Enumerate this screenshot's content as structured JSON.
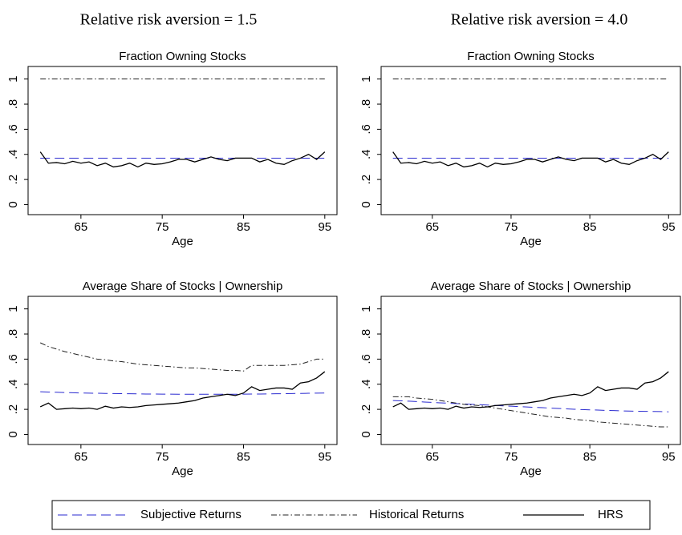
{
  "column_titles": [
    "Relative risk aversion = 1.5",
    "Relative risk aversion = 4.0"
  ],
  "chart_data": [
    {
      "type": "line",
      "title": "Fraction Owning Stocks",
      "xlabel": "Age",
      "x": [
        60,
        61,
        62,
        63,
        64,
        65,
        66,
        67,
        68,
        69,
        70,
        71,
        72,
        73,
        74,
        75,
        76,
        77,
        78,
        79,
        80,
        81,
        82,
        83,
        84,
        85,
        86,
        87,
        88,
        89,
        90,
        91,
        92,
        93,
        94,
        95
      ],
      "xlim": [
        58.5,
        96.5
      ],
      "xticks": [
        65,
        75,
        85,
        95
      ],
      "ylim": [
        -0.08,
        1.1
      ],
      "yticks": [
        0,
        {
          "value": 0.2,
          "label": ".2"
        },
        {
          "value": 0.4,
          "label": ".4"
        },
        {
          "value": 0.6,
          "label": ".6"
        },
        {
          "value": 0.8,
          "label": ".8"
        },
        1
      ],
      "grid": false,
      "series": [
        {
          "name": "Subjective Returns",
          "color": "#2a2ad0",
          "line_style": "dashed",
          "values": [
            0.37,
            0.37,
            0.37,
            0.37,
            0.37,
            0.37,
            0.37,
            0.37,
            0.37,
            0.37,
            0.37,
            0.37,
            0.37,
            0.37,
            0.37,
            0.37,
            0.37,
            0.37,
            0.37,
            0.37,
            0.37,
            0.37,
            0.37,
            0.37,
            0.37,
            0.37,
            0.37,
            0.37,
            0.37,
            0.37,
            0.37,
            0.37,
            0.37,
            0.37,
            0.37,
            0.37
          ]
        },
        {
          "name": "Historical Returns",
          "color": "#222222",
          "line_style": "dashdot",
          "values": [
            1,
            1,
            1,
            1,
            1,
            1,
            1,
            1,
            1,
            1,
            1,
            1,
            1,
            1,
            1,
            1,
            1,
            1,
            1,
            1,
            1,
            1,
            1,
            1,
            1,
            1,
            1,
            1,
            1,
            1,
            1,
            1,
            1,
            1,
            1,
            1
          ]
        },
        {
          "name": "HRS",
          "color": "#000000",
          "line_style": "solid",
          "values": [
            0.42,
            0.33,
            0.335,
            0.325,
            0.345,
            0.33,
            0.34,
            0.31,
            0.33,
            0.3,
            0.31,
            0.33,
            0.3,
            0.33,
            0.32,
            0.325,
            0.34,
            0.36,
            0.36,
            0.34,
            0.36,
            0.38,
            0.36,
            0.35,
            0.37,
            0.37,
            0.37,
            0.34,
            0.36,
            0.33,
            0.32,
            0.35,
            0.37,
            0.4,
            0.36,
            0.42
          ]
        }
      ]
    },
    {
      "type": "line",
      "title": "Fraction Owning Stocks",
      "xlabel": "Age",
      "x": [
        60,
        61,
        62,
        63,
        64,
        65,
        66,
        67,
        68,
        69,
        70,
        71,
        72,
        73,
        74,
        75,
        76,
        77,
        78,
        79,
        80,
        81,
        82,
        83,
        84,
        85,
        86,
        87,
        88,
        89,
        90,
        91,
        92,
        93,
        94,
        95
      ],
      "xlim": [
        58.5,
        96.5
      ],
      "xticks": [
        65,
        75,
        85,
        95
      ],
      "ylim": [
        -0.08,
        1.1
      ],
      "yticks": [
        0,
        {
          "value": 0.2,
          "label": ".2"
        },
        {
          "value": 0.4,
          "label": ".4"
        },
        {
          "value": 0.6,
          "label": ".6"
        },
        {
          "value": 0.8,
          "label": ".8"
        },
        1
      ],
      "grid": false,
      "series": [
        {
          "name": "Subjective Returns",
          "color": "#2a2ad0",
          "line_style": "dashed",
          "values": [
            0.37,
            0.37,
            0.37,
            0.37,
            0.37,
            0.37,
            0.37,
            0.37,
            0.37,
            0.37,
            0.37,
            0.37,
            0.37,
            0.37,
            0.37,
            0.37,
            0.37,
            0.37,
            0.37,
            0.37,
            0.37,
            0.37,
            0.37,
            0.37,
            0.37,
            0.37,
            0.37,
            0.37,
            0.37,
            0.37,
            0.37,
            0.37,
            0.37,
            0.37,
            0.37,
            0.37
          ]
        },
        {
          "name": "Historical Returns",
          "color": "#222222",
          "line_style": "dashdot",
          "values": [
            1,
            1,
            1,
            1,
            1,
            1,
            1,
            1,
            1,
            1,
            1,
            1,
            1,
            1,
            1,
            1,
            1,
            1,
            1,
            1,
            1,
            1,
            1,
            1,
            1,
            1,
            1,
            1,
            1,
            1,
            1,
            1,
            1,
            1,
            1,
            1
          ]
        },
        {
          "name": "HRS",
          "color": "#000000",
          "line_style": "solid",
          "values": [
            0.42,
            0.33,
            0.335,
            0.325,
            0.345,
            0.33,
            0.34,
            0.31,
            0.33,
            0.3,
            0.31,
            0.33,
            0.3,
            0.33,
            0.32,
            0.325,
            0.34,
            0.36,
            0.36,
            0.34,
            0.36,
            0.38,
            0.36,
            0.35,
            0.37,
            0.37,
            0.37,
            0.34,
            0.36,
            0.33,
            0.32,
            0.35,
            0.37,
            0.4,
            0.36,
            0.42
          ]
        }
      ]
    },
    {
      "type": "line",
      "title": "Average Share of Stocks | Ownership",
      "xlabel": "Age",
      "x": [
        60,
        61,
        62,
        63,
        64,
        65,
        66,
        67,
        68,
        69,
        70,
        71,
        72,
        73,
        74,
        75,
        76,
        77,
        78,
        79,
        80,
        81,
        82,
        83,
        84,
        85,
        86,
        87,
        88,
        89,
        90,
        91,
        92,
        93,
        94,
        95
      ],
      "xlim": [
        58.5,
        96.5
      ],
      "xticks": [
        65,
        75,
        85,
        95
      ],
      "ylim": [
        -0.08,
        1.1
      ],
      "yticks": [
        0,
        {
          "value": 0.2,
          "label": ".2"
        },
        {
          "value": 0.4,
          "label": ".4"
        },
        {
          "value": 0.6,
          "label": ".6"
        },
        {
          "value": 0.8,
          "label": ".8"
        },
        1
      ],
      "grid": false,
      "series": [
        {
          "name": "Subjective Returns",
          "color": "#2a2ad0",
          "line_style": "dashed",
          "values": [
            0.34,
            0.338,
            0.336,
            0.334,
            0.332,
            0.33,
            0.329,
            0.328,
            0.327,
            0.326,
            0.325,
            0.324,
            0.323,
            0.322,
            0.322,
            0.321,
            0.321,
            0.32,
            0.32,
            0.32,
            0.32,
            0.32,
            0.32,
            0.32,
            0.32,
            0.321,
            0.322,
            0.322,
            0.323,
            0.324,
            0.325,
            0.326,
            0.327,
            0.328,
            0.329,
            0.33
          ]
        },
        {
          "name": "Historical Returns",
          "color": "#222222",
          "line_style": "dashdot",
          "values": [
            0.73,
            0.7,
            0.68,
            0.66,
            0.645,
            0.63,
            0.615,
            0.6,
            0.595,
            0.585,
            0.58,
            0.57,
            0.56,
            0.555,
            0.55,
            0.545,
            0.54,
            0.535,
            0.53,
            0.53,
            0.525,
            0.52,
            0.515,
            0.51,
            0.51,
            0.505,
            0.55,
            0.55,
            0.55,
            0.55,
            0.55,
            0.555,
            0.56,
            0.58,
            0.6,
            0.6
          ]
        },
        {
          "name": "HRS",
          "color": "#000000",
          "line_style": "solid",
          "values": [
            0.22,
            0.25,
            0.2,
            0.205,
            0.21,
            0.205,
            0.21,
            0.2,
            0.225,
            0.21,
            0.22,
            0.215,
            0.22,
            0.23,
            0.235,
            0.24,
            0.245,
            0.25,
            0.26,
            0.27,
            0.29,
            0.3,
            0.31,
            0.32,
            0.31,
            0.33,
            0.38,
            0.35,
            0.36,
            0.37,
            0.37,
            0.36,
            0.41,
            0.42,
            0.45,
            0.5
          ]
        }
      ]
    },
    {
      "type": "line",
      "title": "Average Share of Stocks | Ownership",
      "xlabel": "Age",
      "x": [
        60,
        61,
        62,
        63,
        64,
        65,
        66,
        67,
        68,
        69,
        70,
        71,
        72,
        73,
        74,
        75,
        76,
        77,
        78,
        79,
        80,
        81,
        82,
        83,
        84,
        85,
        86,
        87,
        88,
        89,
        90,
        91,
        92,
        93,
        94,
        95
      ],
      "xlim": [
        58.5,
        96.5
      ],
      "xticks": [
        65,
        75,
        85,
        95
      ],
      "ylim": [
        -0.08,
        1.1
      ],
      "yticks": [
        0,
        {
          "value": 0.2,
          "label": ".2"
        },
        {
          "value": 0.4,
          "label": ".4"
        },
        {
          "value": 0.6,
          "label": ".6"
        },
        {
          "value": 0.8,
          "label": ".8"
        },
        1
      ],
      "grid": false,
      "series": [
        {
          "name": "Subjective Returns",
          "color": "#2a2ad0",
          "line_style": "dashed",
          "values": [
            0.27,
            0.268,
            0.265,
            0.262,
            0.258,
            0.255,
            0.252,
            0.249,
            0.246,
            0.243,
            0.24,
            0.237,
            0.234,
            0.231,
            0.228,
            0.225,
            0.222,
            0.219,
            0.216,
            0.213,
            0.21,
            0.207,
            0.204,
            0.201,
            0.198,
            0.196,
            0.194,
            0.192,
            0.19,
            0.188,
            0.186,
            0.185,
            0.184,
            0.183,
            0.182,
            0.18
          ]
        },
        {
          "name": "Historical Returns",
          "color": "#222222",
          "line_style": "dashdot",
          "values": [
            0.3,
            0.3,
            0.3,
            0.29,
            0.285,
            0.28,
            0.27,
            0.26,
            0.25,
            0.24,
            0.235,
            0.23,
            0.22,
            0.21,
            0.2,
            0.19,
            0.18,
            0.17,
            0.16,
            0.15,
            0.14,
            0.135,
            0.13,
            0.12,
            0.115,
            0.11,
            0.1,
            0.095,
            0.09,
            0.085,
            0.08,
            0.075,
            0.07,
            0.065,
            0.06,
            0.06
          ]
        },
        {
          "name": "HRS",
          "color": "#000000",
          "line_style": "solid",
          "values": [
            0.22,
            0.25,
            0.2,
            0.205,
            0.21,
            0.205,
            0.21,
            0.2,
            0.225,
            0.21,
            0.22,
            0.215,
            0.22,
            0.23,
            0.235,
            0.24,
            0.245,
            0.25,
            0.26,
            0.27,
            0.29,
            0.3,
            0.31,
            0.32,
            0.31,
            0.33,
            0.38,
            0.35,
            0.36,
            0.37,
            0.37,
            0.36,
            0.41,
            0.42,
            0.45,
            0.5
          ]
        }
      ]
    }
  ]
}
